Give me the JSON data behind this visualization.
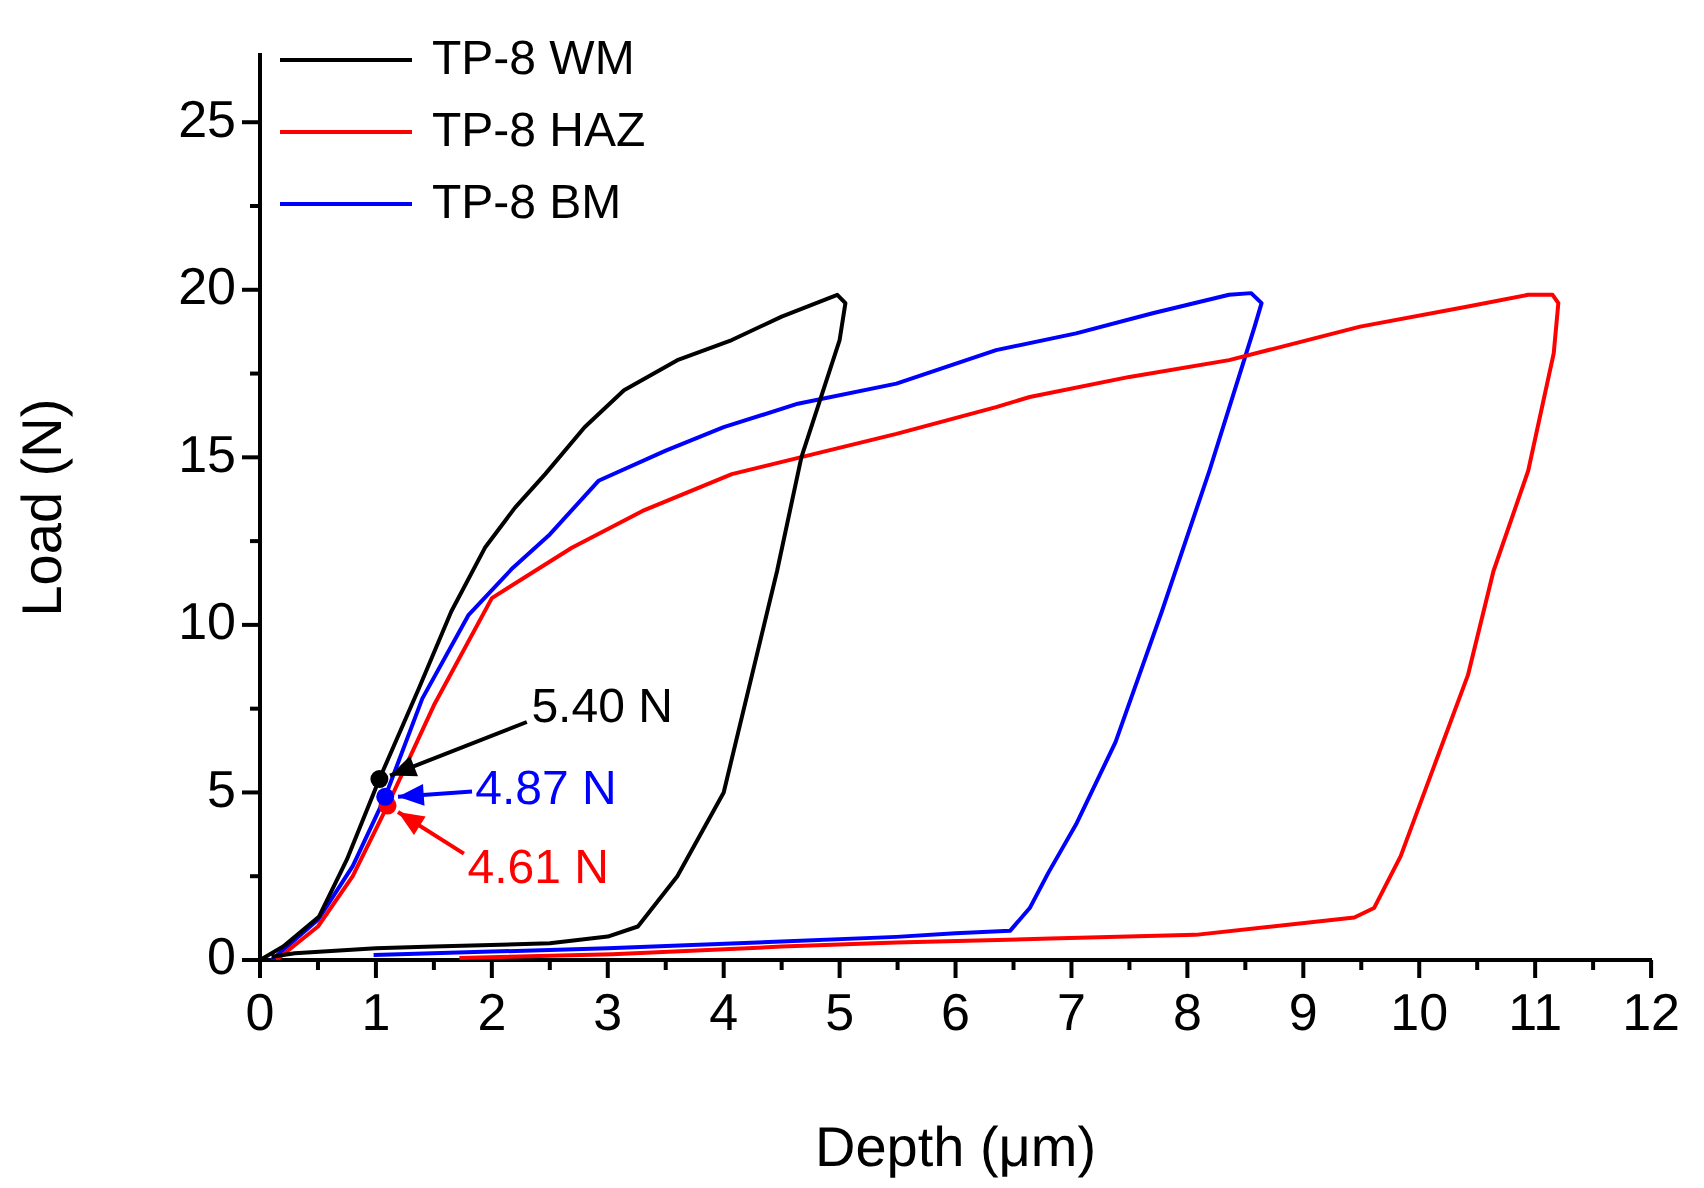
{
  "chart_data": {
    "type": "line",
    "xlabel": "Depth (μm)",
    "ylabel": "Load (N)",
    "xlim": [
      0,
      12
    ],
    "ylim": [
      0,
      27
    ],
    "xticks": [
      0,
      {
        "value": 0.5,
        "label": null
      },
      1,
      {
        "value": 1.5,
        "label": null
      },
      2,
      {
        "value": 2.5,
        "label": null
      },
      3,
      {
        "value": 3.5,
        "label": null
      },
      4,
      {
        "value": 4.5,
        "label": null
      },
      5,
      {
        "value": 5.5,
        "label": null
      },
      6,
      {
        "value": 6.5,
        "label": null
      },
      7,
      {
        "value": 7.5,
        "label": null
      },
      8,
      {
        "value": 8.5,
        "label": null
      },
      9,
      {
        "value": 9.5,
        "label": null
      },
      10,
      {
        "value": 10.5,
        "label": null
      },
      11,
      {
        "value": 11.5,
        "label": null
      },
      12
    ],
    "yticks": [
      0,
      {
        "value": 2.5,
        "label": null
      },
      5,
      {
        "value": 7.5,
        "label": null
      },
      10,
      {
        "value": 12.5,
        "label": null
      },
      15,
      {
        "value": 17.5,
        "label": null
      },
      20,
      {
        "value": 22.5,
        "label": null
      },
      25
    ],
    "grid": false,
    "legend": "top left",
    "marker": "none",
    "line_style": "solid",
    "series": [
      {
        "name": "TP-8 WM",
        "color": "#000000",
        "x": [
          0,
          0.2,
          0.51,
          0.75,
          1.03,
          1.37,
          1.65,
          1.94,
          2.2,
          2.46,
          2.8,
          3.14,
          3.6,
          4.07,
          4.5,
          4.98,
          5.05,
          5.0,
          4.67,
          4.46,
          4.0,
          3.6,
          3.26,
          3.0,
          2.5,
          1.5,
          1.0,
          0.3,
          0.1
        ],
        "values": [
          0,
          0.4,
          1.3,
          3.0,
          5.4,
          8.1,
          10.4,
          12.3,
          13.5,
          14.5,
          15.9,
          17.0,
          17.9,
          18.5,
          19.2,
          19.85,
          19.6,
          18.5,
          15,
          11.6,
          5,
          2.5,
          1.0,
          0.7,
          0.5,
          0.4,
          0.35,
          0.2,
          0.1
        ]
      },
      {
        "name": "TP-8 HAZ",
        "color": "#ff0000",
        "x": [
          0.14,
          0.5,
          0.8,
          1.1,
          1.5,
          2.0,
          2.69,
          3.3,
          4.07,
          5.49,
          6.35,
          6.64,
          7.5,
          8.36,
          9.49,
          10.42,
          10.94,
          11.15,
          11.2,
          11.16,
          10.94,
          10.64,
          10.42,
          10.13,
          9.84,
          9.61,
          9.44,
          8.07,
          6.82,
          5.49,
          4.5,
          3.04,
          1.72
        ],
        "values": [
          0,
          1.0,
          2.5,
          4.61,
          7.6,
          10.8,
          12.3,
          13.4,
          14.5,
          15.7,
          16.5,
          16.8,
          17.4,
          17.9,
          18.9,
          19.5,
          19.85,
          19.85,
          19.6,
          18.1,
          14.6,
          11.6,
          8.5,
          5.8,
          3.1,
          1.55,
          1.27,
          0.75,
          0.64,
          0.52,
          0.4,
          0.17,
          0.06
        ]
      },
      {
        "name": "TP-8 BM",
        "color": "#0000ff",
        "x": [
          0.1,
          0.5,
          0.8,
          1.08,
          1.4,
          1.8,
          2.18,
          2.5,
          2.92,
          3.5,
          4.0,
          4.64,
          5.49,
          6.35,
          7.04,
          7.7,
          8.36,
          8.55,
          8.64,
          8.58,
          8.19,
          7.78,
          7.38,
          7.04,
          6.8,
          6.64,
          6.47,
          6.0,
          5.49,
          4.5,
          3.0,
          2.0,
          0.98
        ],
        "values": [
          0,
          1.2,
          2.8,
          4.87,
          7.8,
          10.3,
          11.7,
          12.7,
          14.3,
          15.2,
          15.9,
          16.6,
          17.2,
          18.2,
          18.7,
          19.3,
          19.85,
          19.9,
          19.6,
          18.9,
          14.6,
          10.4,
          6.5,
          4.05,
          2.6,
          1.55,
          0.87,
          0.8,
          0.69,
          0.55,
          0.35,
          0.25,
          0.15
        ]
      }
    ],
    "annotations": [
      {
        "text": "5.40 N",
        "x": 1.03,
        "y": 5.4
      },
      {
        "text": "4.61 N",
        "x": 1.1,
        "y": 4.61
      },
      {
        "text": "4.87 N",
        "x": 1.08,
        "y": 4.87
      }
    ]
  }
}
